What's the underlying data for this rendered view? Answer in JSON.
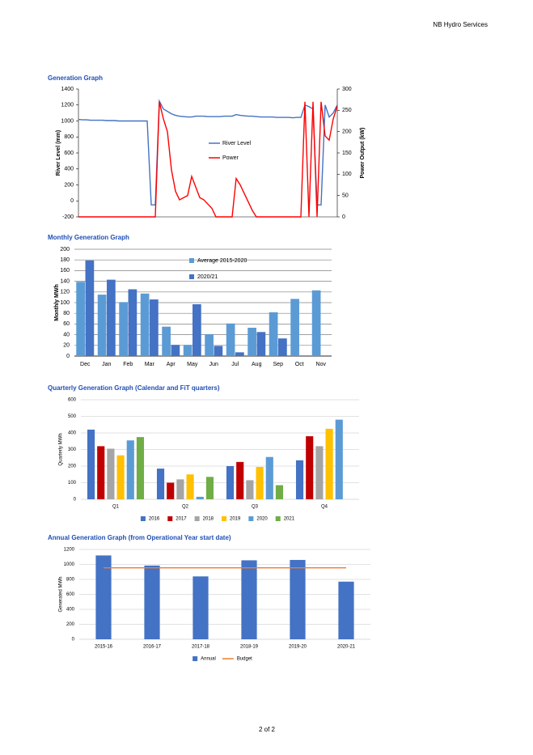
{
  "header": "NB Hydro Services",
  "footer": "2 of 2",
  "chart_data": [
    {
      "type": "line",
      "title": "Generation Graph",
      "y_label": "River Level (mm)",
      "y2_label": "Power Output (kW)",
      "ylim": [
        -200,
        1400
      ],
      "yticks": [
        -200,
        0,
        200,
        400,
        600,
        800,
        1000,
        1200,
        1400
      ],
      "y2lim": [
        0,
        300
      ],
      "y2ticks": [
        0,
        50,
        100,
        150,
        200,
        250,
        300
      ],
      "grid": false,
      "legend": "center",
      "series": [
        {
          "name": "River Level",
          "color": "#4472c4",
          "values": [
            1020,
            1015,
            1015,
            1010,
            1010,
            1010,
            1010,
            1005,
            1005,
            1005,
            1000,
            1000,
            1000,
            1000,
            1000,
            1000,
            1000,
            1000,
            -50,
            -50,
            1250,
            1150,
            1120,
            1090,
            1070,
            1060,
            1055,
            1050,
            1050,
            1060,
            1060,
            1060,
            1055,
            1055,
            1055,
            1055,
            1060,
            1060,
            1060,
            1080,
            1070,
            1065,
            1060,
            1060,
            1055,
            1050,
            1050,
            1050,
            1050,
            1045,
            1045,
            1045,
            1045,
            1040,
            1045,
            1045,
            1200,
            1180,
            1150,
            -50,
            -50,
            1200,
            1050,
            1100,
            1200
          ]
        },
        {
          "name": "Power",
          "color": "#ff0000",
          "axis": "y2",
          "values": [
            0,
            0,
            0,
            0,
            0,
            0,
            0,
            0,
            0,
            0,
            0,
            0,
            0,
            0,
            0,
            0,
            0,
            0,
            0,
            0,
            270,
            230,
            200,
            110,
            60,
            40,
            45,
            50,
            95,
            70,
            45,
            40,
            30,
            20,
            0,
            0,
            0,
            0,
            0,
            90,
            75,
            55,
            35,
            15,
            0,
            0,
            0,
            0,
            0,
            0,
            0,
            0,
            0,
            0,
            0,
            0,
            270,
            0,
            270,
            0,
            270,
            190,
            180,
            230,
            260
          ]
        }
      ]
    },
    {
      "type": "bar",
      "title": "Monthly Generation Graph",
      "y_label": "Monthly MWh",
      "categories": [
        "Dec",
        "Jan",
        "Feb",
        "Mar",
        "Apr",
        "May",
        "Jun",
        "Jul",
        "Aug",
        "Sep",
        "Oct",
        "Nov"
      ],
      "ylim": [
        0,
        200
      ],
      "yticks": [
        0,
        20,
        40,
        60,
        80,
        100,
        120,
        140,
        160,
        180,
        200
      ],
      "grid": true,
      "legend": "inside",
      "series": [
        {
          "name": "Average 2015-2020",
          "color": "#5b9bd5",
          "values": [
            139,
            115,
            101,
            117,
            55,
            21,
            41,
            61,
            53,
            82,
            107,
            123
          ]
        },
        {
          "name": "2020/21",
          "color": "#4472c4",
          "values": [
            179,
            143,
            125,
            106,
            21,
            97,
            19,
            7,
            45,
            33,
            null,
            null
          ]
        }
      ]
    },
    {
      "type": "bar",
      "title": "Quarterly Generation Graph (Calendar and FiT quarters)",
      "y_label": "Quarterly MWh",
      "categories": [
        "Q1",
        "Q2",
        "Q3",
        "Q4"
      ],
      "ylim": [
        0,
        600
      ],
      "yticks": [
        0,
        100,
        200,
        300,
        400,
        500,
        600
      ],
      "grid": true,
      "legend": "bottom",
      "series": [
        {
          "name": "2016",
          "color": "#4472c4",
          "values": [
            420,
            185,
            200,
            235
          ]
        },
        {
          "name": "2017",
          "color": "#c00000",
          "values": [
            320,
            100,
            225,
            380
          ]
        },
        {
          "name": "2018",
          "color": "#a5a5a5",
          "values": [
            305,
            120,
            115,
            320
          ]
        },
        {
          "name": "2019",
          "color": "#ffc000",
          "values": [
            265,
            150,
            195,
            425
          ]
        },
        {
          "name": "2020",
          "color": "#5b9bd5",
          "values": [
            355,
            15,
            255,
            480
          ]
        },
        {
          "name": "2021",
          "color": "#70ad47",
          "values": [
            375,
            135,
            85,
            null
          ]
        }
      ]
    },
    {
      "type": "bar",
      "title": "Annual Generation Graph (from Operational Year start date)",
      "y_label": "Generated MWh",
      "categories": [
        "2015-16",
        "2016-17",
        "2017-18",
        "2018-19",
        "2019-20",
        "2020-21"
      ],
      "ylim": [
        0,
        1200
      ],
      "yticks": [
        0,
        200,
        400,
        600,
        800,
        1000,
        1200
      ],
      "grid": true,
      "legend": "bottom",
      "series": [
        {
          "name": "Annual",
          "color": "#4472c4",
          "values": [
            1120,
            985,
            840,
            1055,
            1060,
            770
          ]
        },
        {
          "name": "Budget",
          "color": "#ed7d31",
          "type": "line",
          "values": [
            955,
            955,
            955,
            955,
            955,
            955
          ]
        }
      ]
    }
  ]
}
